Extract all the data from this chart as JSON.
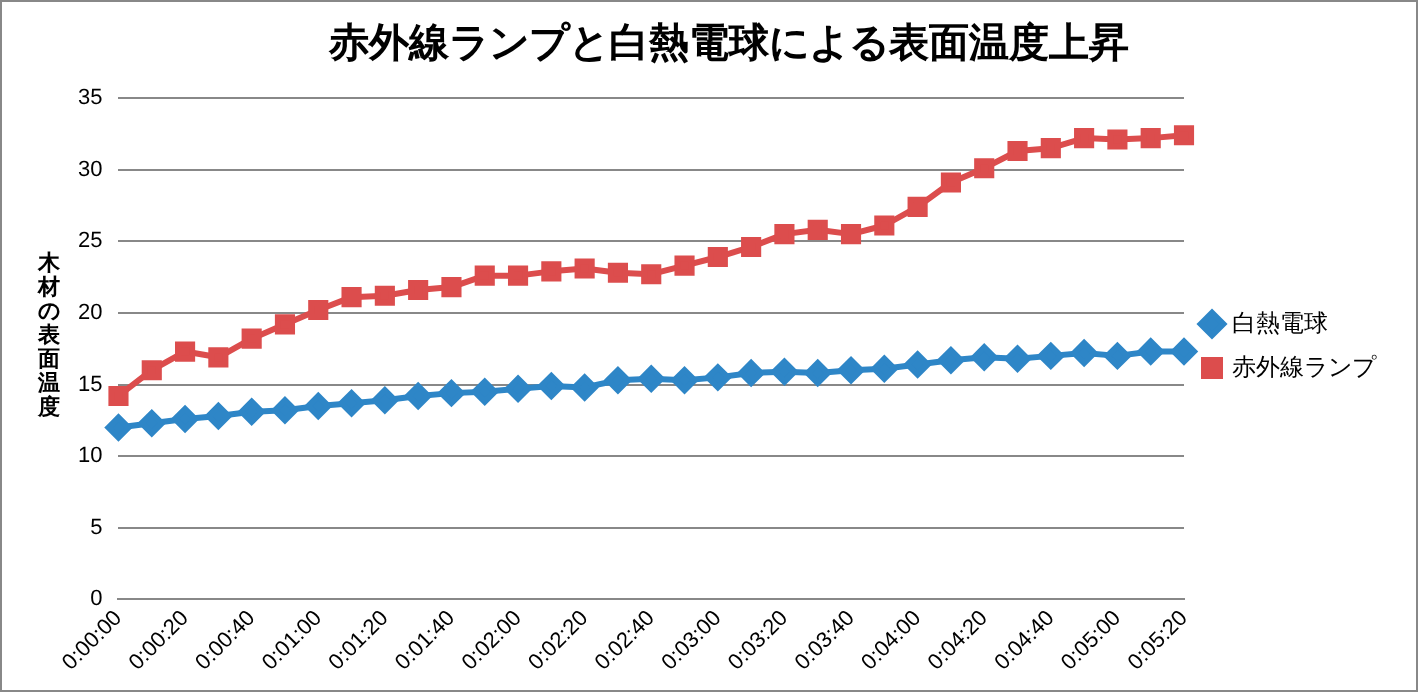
{
  "chart_data": {
    "type": "line",
    "title": "赤外線ランプと白熱電球による表面温度上昇",
    "ylabel": "木材の表面温度",
    "categories": [
      "0:00:00",
      null,
      "0:00:20",
      null,
      "0:00:40",
      null,
      "0:01:00",
      null,
      "0:01:20",
      null,
      "0:01:40",
      null,
      "0:02:00",
      null,
      "0:02:20",
      null,
      "0:02:40",
      null,
      "0:03:00",
      null,
      "0:03:20",
      null,
      "0:03:40",
      null,
      "0:04:00",
      null,
      "0:04:20",
      null,
      "0:04:40",
      null,
      "0:05:00",
      null,
      "0:05:20"
    ],
    "series": [
      {
        "name": "白熱電球",
        "color": "#2e86c7",
        "marker": "diamond",
        "values": [
          12,
          12.3,
          12.6,
          12.8,
          13.1,
          13.2,
          13.5,
          13.7,
          13.9,
          14.2,
          14.4,
          14.5,
          14.7,
          14.9,
          14.8,
          15.3,
          15.4,
          15.3,
          15.5,
          15.8,
          15.9,
          15.8,
          16,
          16.1,
          16.4,
          16.7,
          16.9,
          16.8,
          17,
          17.2,
          17,
          17.3,
          17.3
        ]
      },
      {
        "name": "赤外線ランプ",
        "color": "#dc4d4d",
        "marker": "square",
        "values": [
          14.2,
          16,
          17.3,
          16.9,
          18.2,
          19.2,
          20.2,
          21.1,
          21.2,
          21.6,
          21.8,
          22.6,
          22.6,
          22.9,
          23.1,
          22.8,
          22.7,
          23.3,
          23.9,
          24.6,
          25.5,
          25.8,
          25.5,
          26.1,
          27.4,
          29.1,
          30.1,
          31.3,
          31.5,
          32.2,
          32.1,
          32.2,
          32.4
        ]
      }
    ],
    "ylim": [
      0,
      35
    ],
    "yticks": [
      0,
      5,
      10,
      15,
      20,
      25,
      30,
      35
    ],
    "grid": "y",
    "legend": "right"
  }
}
